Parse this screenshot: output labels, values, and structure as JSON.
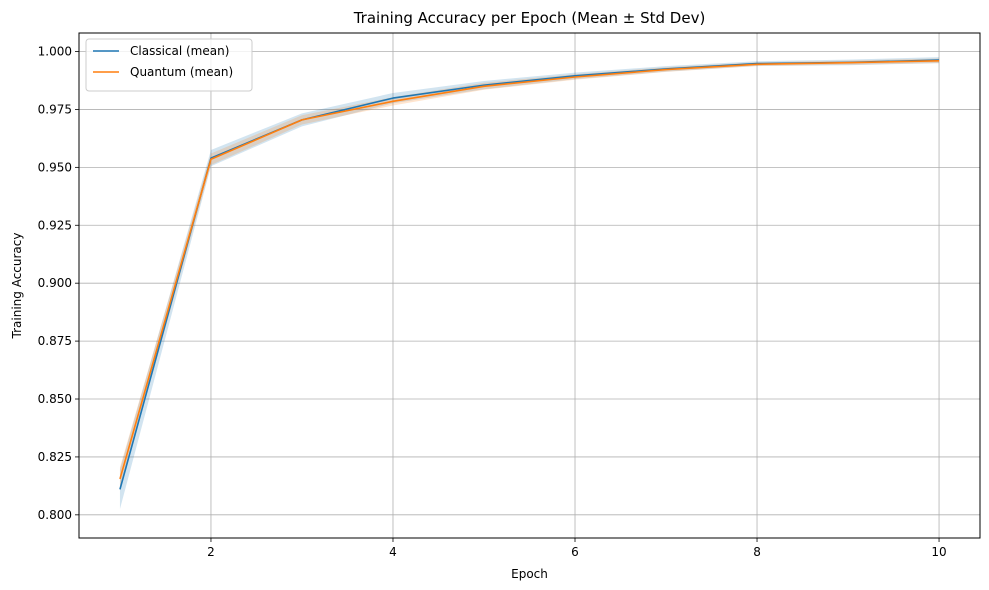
{
  "chart_data": {
    "type": "line",
    "title": "Training Accuracy per Epoch (Mean ± Std Dev)",
    "xlabel": "Epoch",
    "ylabel": "Training Accuracy",
    "xlim": [
      0.55,
      10.45
    ],
    "ylim": [
      0.79,
      1.008
    ],
    "xticks": [
      2,
      4,
      6,
      8,
      10
    ],
    "yticks": [
      "0.800",
      "0.825",
      "0.850",
      "0.875",
      "0.900",
      "0.925",
      "0.950",
      "0.975",
      "1.000"
    ],
    "grid": true,
    "legend_position": "top-left",
    "x": [
      1,
      2,
      3,
      4,
      5,
      6,
      7,
      8,
      9,
      10
    ],
    "series": [
      {
        "name": "Classical (mean)",
        "color": "#1f77b4",
        "band_color": "#1f77b4",
        "values": [
          0.811,
          0.954,
          0.9705,
          0.9799,
          0.9855,
          0.9895,
          0.9925,
          0.9948,
          0.9953,
          0.9963
        ],
        "std": [
          0.0085,
          0.0035,
          0.0028,
          0.0022,
          0.0018,
          0.0014,
          0.0012,
          0.001,
          0.0012,
          0.0013
        ]
      },
      {
        "name": "Quantum (mean)",
        "color": "#ff7f0e",
        "band_color": "#ff7f0e",
        "values": [
          0.8155,
          0.9535,
          0.9705,
          0.9785,
          0.985,
          0.989,
          0.9922,
          0.9945,
          0.9952,
          0.996
        ],
        "std": [
          0.005,
          0.0025,
          0.002,
          0.0018,
          0.0015,
          0.0012,
          0.001,
          0.0008,
          0.0009,
          0.001
        ]
      }
    ]
  }
}
